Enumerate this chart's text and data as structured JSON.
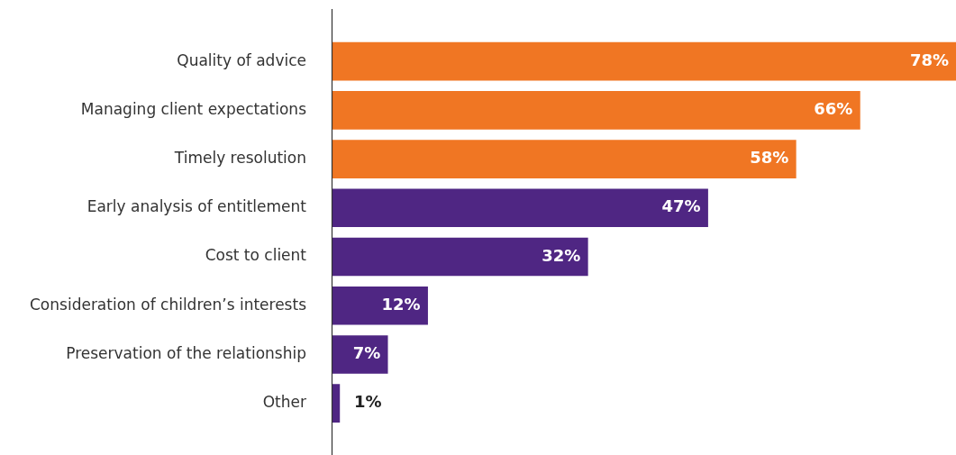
{
  "chart_data": {
    "type": "bar",
    "orientation": "horizontal",
    "categories": [
      "Quality of advice",
      "Managing client expectations",
      "Timely resolution",
      "Early analysis of entitlement",
      "Cost to client",
      "Consideration of children’s interests",
      "Preservation of the relationship",
      "Other"
    ],
    "values": [
      78,
      66,
      58,
      47,
      32,
      12,
      7,
      1
    ],
    "colors": [
      "#f07623",
      "#f07623",
      "#f07623",
      "#4f2683",
      "#4f2683",
      "#4f2683",
      "#4f2683",
      "#4f2683"
    ],
    "value_labels": [
      "78%",
      "66%",
      "58%",
      "47%",
      "32%",
      "12%",
      "7%",
      "1%"
    ],
    "tick_labels": "y"
  }
}
